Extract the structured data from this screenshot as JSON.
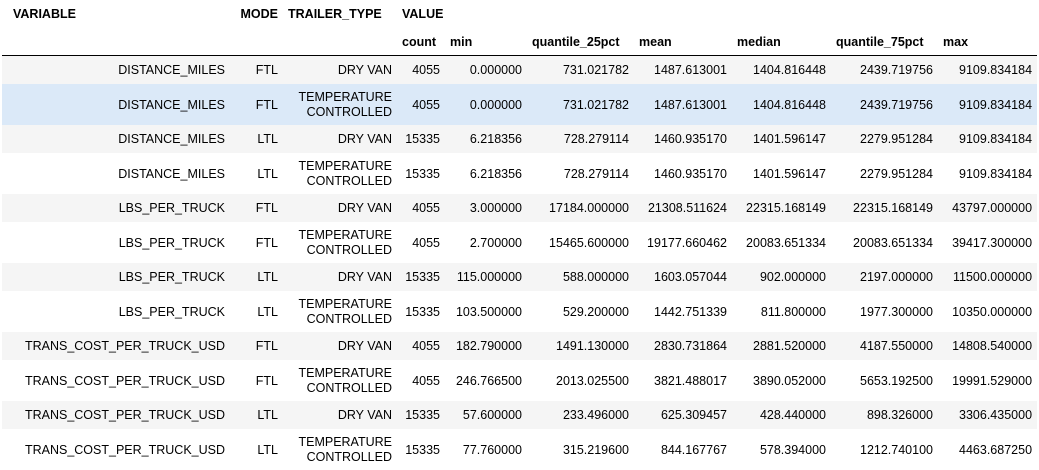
{
  "header": {
    "index_names": [
      "VARIABLE",
      "MODE",
      "TRAILER_TYPE"
    ],
    "group_label": "VALUE",
    "columns": [
      "count",
      "min",
      "quantile_25pct",
      "mean",
      "median",
      "quantile_75pct",
      "max"
    ]
  },
  "rows": [
    {
      "variable": "DISTANCE_MILES",
      "mode": "FTL",
      "trailer_type": "DRY VAN",
      "count": "4055",
      "min": "0.000000",
      "quantile_25pct": "731.021782",
      "mean": "1487.613001",
      "median": "1404.816448",
      "quantile_75pct": "2439.719756",
      "max": "9109.834184"
    },
    {
      "variable": "DISTANCE_MILES",
      "mode": "FTL",
      "trailer_type": "TEMPERATURE CONTROLLED",
      "count": "4055",
      "min": "0.000000",
      "quantile_25pct": "731.021782",
      "mean": "1487.613001",
      "median": "1404.816448",
      "quantile_75pct": "2439.719756",
      "max": "9109.834184"
    },
    {
      "variable": "DISTANCE_MILES",
      "mode": "LTL",
      "trailer_type": "DRY VAN",
      "count": "15335",
      "min": "6.218356",
      "quantile_25pct": "728.279114",
      "mean": "1460.935170",
      "median": "1401.596147",
      "quantile_75pct": "2279.951284",
      "max": "9109.834184"
    },
    {
      "variable": "DISTANCE_MILES",
      "mode": "LTL",
      "trailer_type": "TEMPERATURE CONTROLLED",
      "count": "15335",
      "min": "6.218356",
      "quantile_25pct": "728.279114",
      "mean": "1460.935170",
      "median": "1401.596147",
      "quantile_75pct": "2279.951284",
      "max": "9109.834184"
    },
    {
      "variable": "LBS_PER_TRUCK",
      "mode": "FTL",
      "trailer_type": "DRY VAN",
      "count": "4055",
      "min": "3.000000",
      "quantile_25pct": "17184.000000",
      "mean": "21308.511624",
      "median": "22315.168149",
      "quantile_75pct": "22315.168149",
      "max": "43797.000000"
    },
    {
      "variable": "LBS_PER_TRUCK",
      "mode": "FTL",
      "trailer_type": "TEMPERATURE CONTROLLED",
      "count": "4055",
      "min": "2.700000",
      "quantile_25pct": "15465.600000",
      "mean": "19177.660462",
      "median": "20083.651334",
      "quantile_75pct": "20083.651334",
      "max": "39417.300000"
    },
    {
      "variable": "LBS_PER_TRUCK",
      "mode": "LTL",
      "trailer_type": "DRY VAN",
      "count": "15335",
      "min": "115.000000",
      "quantile_25pct": "588.000000",
      "mean": "1603.057044",
      "median": "902.000000",
      "quantile_75pct": "2197.000000",
      "max": "11500.000000"
    },
    {
      "variable": "LBS_PER_TRUCK",
      "mode": "LTL",
      "trailer_type": "TEMPERATURE CONTROLLED",
      "count": "15335",
      "min": "103.500000",
      "quantile_25pct": "529.200000",
      "mean": "1442.751339",
      "median": "811.800000",
      "quantile_75pct": "1977.300000",
      "max": "10350.000000"
    },
    {
      "variable": "TRANS_COST_PER_TRUCK_USD",
      "mode": "FTL",
      "trailer_type": "DRY VAN",
      "count": "4055",
      "min": "182.790000",
      "quantile_25pct": "1491.130000",
      "mean": "2830.731864",
      "median": "2881.520000",
      "quantile_75pct": "4187.550000",
      "max": "14808.540000"
    },
    {
      "variable": "TRANS_COST_PER_TRUCK_USD",
      "mode": "FTL",
      "trailer_type": "TEMPERATURE CONTROLLED",
      "count": "4055",
      "min": "246.766500",
      "quantile_25pct": "2013.025500",
      "mean": "3821.488017",
      "median": "3890.052000",
      "quantile_75pct": "5653.192500",
      "max": "19991.529000"
    },
    {
      "variable": "TRANS_COST_PER_TRUCK_USD",
      "mode": "LTL",
      "trailer_type": "DRY VAN",
      "count": "15335",
      "min": "57.600000",
      "quantile_25pct": "233.496000",
      "mean": "625.309457",
      "median": "428.440000",
      "quantile_75pct": "898.326000",
      "max": "3306.435000"
    },
    {
      "variable": "TRANS_COST_PER_TRUCK_USD",
      "mode": "LTL",
      "trailer_type": "TEMPERATURE CONTROLLED",
      "count": "15335",
      "min": "77.760000",
      "quantile_25pct": "315.219600",
      "mean": "844.167767",
      "median": "578.394000",
      "quantile_75pct": "1212.740100",
      "max": "4463.687250"
    }
  ],
  "highlighted_row": 1
}
